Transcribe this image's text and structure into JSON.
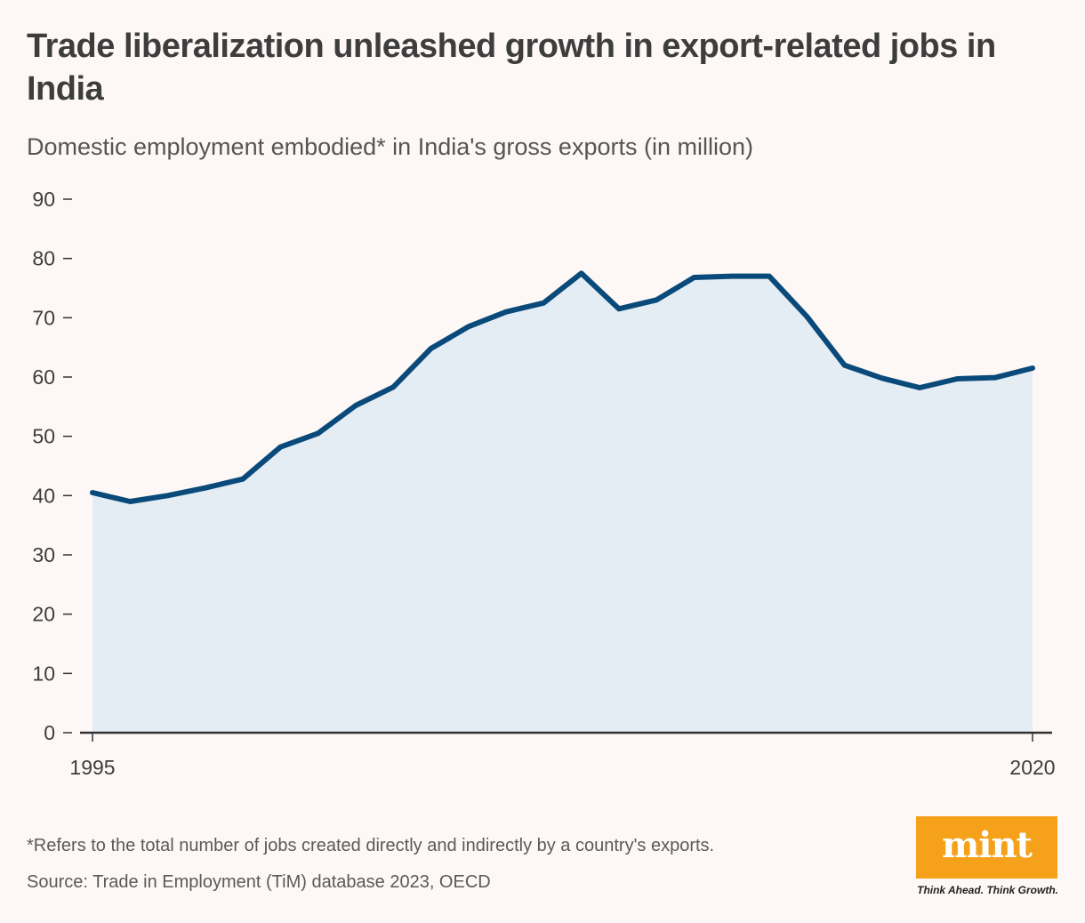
{
  "header": {
    "title": "Trade liberalization unleashed growth in export-related jobs in India",
    "subtitle": "Domestic employment embodied* in India's gross exports (in million)"
  },
  "footer": {
    "footnote": "*Refers to the total number of jobs created directly and indirectly by a country's exports.",
    "source": "Source: Trade in Employment (TiM) database 2023, OECD",
    "logo_text": "mint",
    "tagline": "Think Ahead. Think Growth."
  },
  "colors": {
    "line": "#0a4a7a",
    "area": "#e5edf4",
    "axis": "#333333",
    "logo": "#f5a11a"
  },
  "chart_data": {
    "type": "area",
    "title": "Trade liberalization unleashed growth in export-related jobs in India",
    "ylabel": "Domestic employment embodied in India's gross exports (in million)",
    "xlabel": "",
    "x": [
      1995,
      1996,
      1997,
      1998,
      1999,
      2000,
      2001,
      2002,
      2003,
      2004,
      2005,
      2006,
      2007,
      2008,
      2009,
      2010,
      2011,
      2012,
      2013,
      2014,
      2015,
      2016,
      2017,
      2018,
      2019,
      2020
    ],
    "series": [
      {
        "name": "Domestic employment embodied in gross exports",
        "values": [
          40.5,
          39.0,
          40.0,
          41.3,
          42.8,
          48.2,
          50.5,
          55.2,
          58.3,
          64.8,
          68.5,
          71.0,
          72.5,
          77.5,
          71.5,
          73.0,
          76.8,
          77.0,
          77.0,
          70.2,
          62.0,
          59.8,
          58.2,
          59.7,
          59.9,
          61.5
        ]
      }
    ],
    "x_tick_labels": [
      "1995",
      "2020"
    ],
    "y_ticks": [
      0,
      10,
      20,
      30,
      40,
      50,
      60,
      70,
      80,
      90
    ],
    "ylim": [
      0,
      90
    ],
    "xlim": [
      1995,
      2020
    ],
    "grid": false,
    "legend": "none"
  }
}
